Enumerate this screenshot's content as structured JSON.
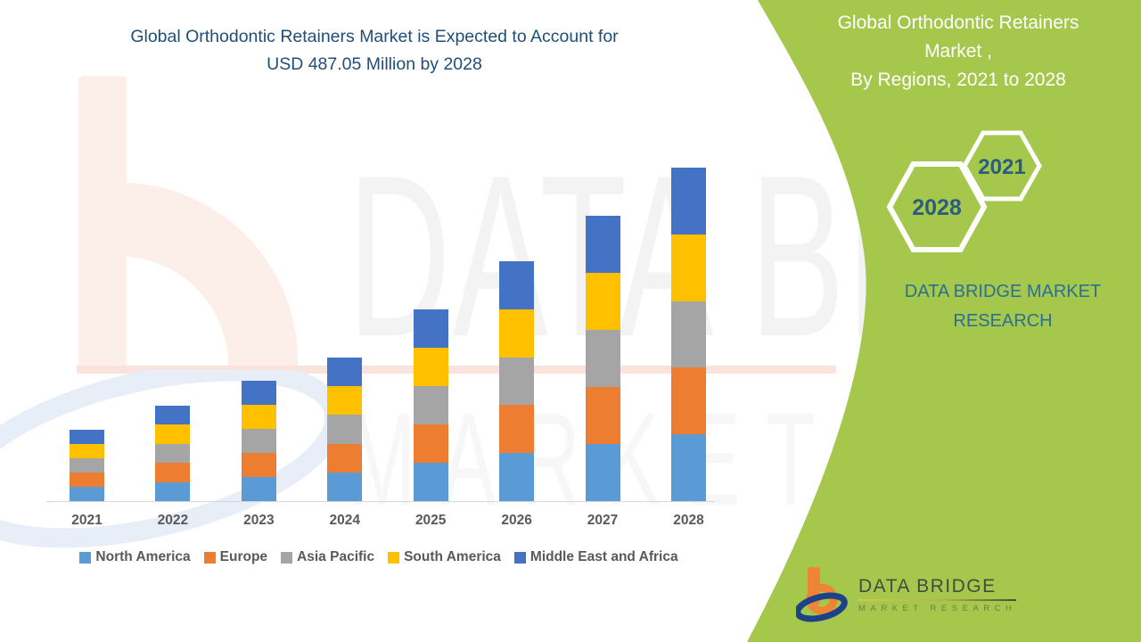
{
  "header": {
    "title_line1": "Global Orthodontic Retainers Market is Expected to Account for",
    "title_line2": "USD 487.05 Million by 2028",
    "title_color": "#1f4e79"
  },
  "chart_data": {
    "type": "bar",
    "stacked": true,
    "title": "Global Orthodontic Retainers Market is Expected to Account for USD 487.05 Million by 2028",
    "unit": "USD Million",
    "categories": [
      "2021",
      "2022",
      "2023",
      "2024",
      "2025",
      "2026",
      "2027",
      "2028"
    ],
    "series": [
      {
        "name": "North America",
        "color": "#5b9bd5",
        "values": [
          20.8,
          27.9,
          35.2,
          41.9,
          56.0,
          70.1,
          83.3,
          97.4
        ]
      },
      {
        "name": "Europe",
        "color": "#ed7d31",
        "values": [
          20.8,
          27.9,
          35.2,
          41.9,
          56.0,
          70.1,
          83.3,
          97.4
        ]
      },
      {
        "name": "Asia Pacific",
        "color": "#a5a5a5",
        "values": [
          20.8,
          27.9,
          35.2,
          41.9,
          56.0,
          70.1,
          83.3,
          97.4
        ]
      },
      {
        "name": "South America",
        "color": "#ffc000",
        "values": [
          20.8,
          27.9,
          35.2,
          41.9,
          56.0,
          70.1,
          83.3,
          97.4
        ]
      },
      {
        "name": "Middle East and Africa",
        "color": "#4472c4",
        "values": [
          20.8,
          27.9,
          35.2,
          41.9,
          56.0,
          70.1,
          83.3,
          97.45
        ]
      }
    ],
    "totals": [
      104.0,
      139.5,
      176.0,
      209.5,
      280.0,
      350.5,
      416.5,
      487.05
    ],
    "note": "No value axis shown; segment values estimated from bar heights, 2028 total anchored to 487.05 from title",
    "ylim": [
      0,
      500
    ],
    "grid": false,
    "legend_position": "bottom",
    "xlabel": "",
    "ylabel": ""
  },
  "watermark": {
    "line1": "DATA BRIDGE",
    "line2": "MARKET RESEARCH"
  },
  "side_panel": {
    "background_color": "#a5c74b",
    "heading_line1": "Global Orthodontic Retainers",
    "heading_line2": "Market ,",
    "heading_line3": "By Regions, 2021 to 2028",
    "hexagon_back_label": "2021",
    "hexagon_front_label": "2028",
    "brand_line1": "DATA BRIDGE MARKET",
    "brand_line2": "RESEARCH"
  },
  "footer_logo": {
    "name": "DATA BRIDGE",
    "subtitle": "MARKET RESEARCH"
  }
}
